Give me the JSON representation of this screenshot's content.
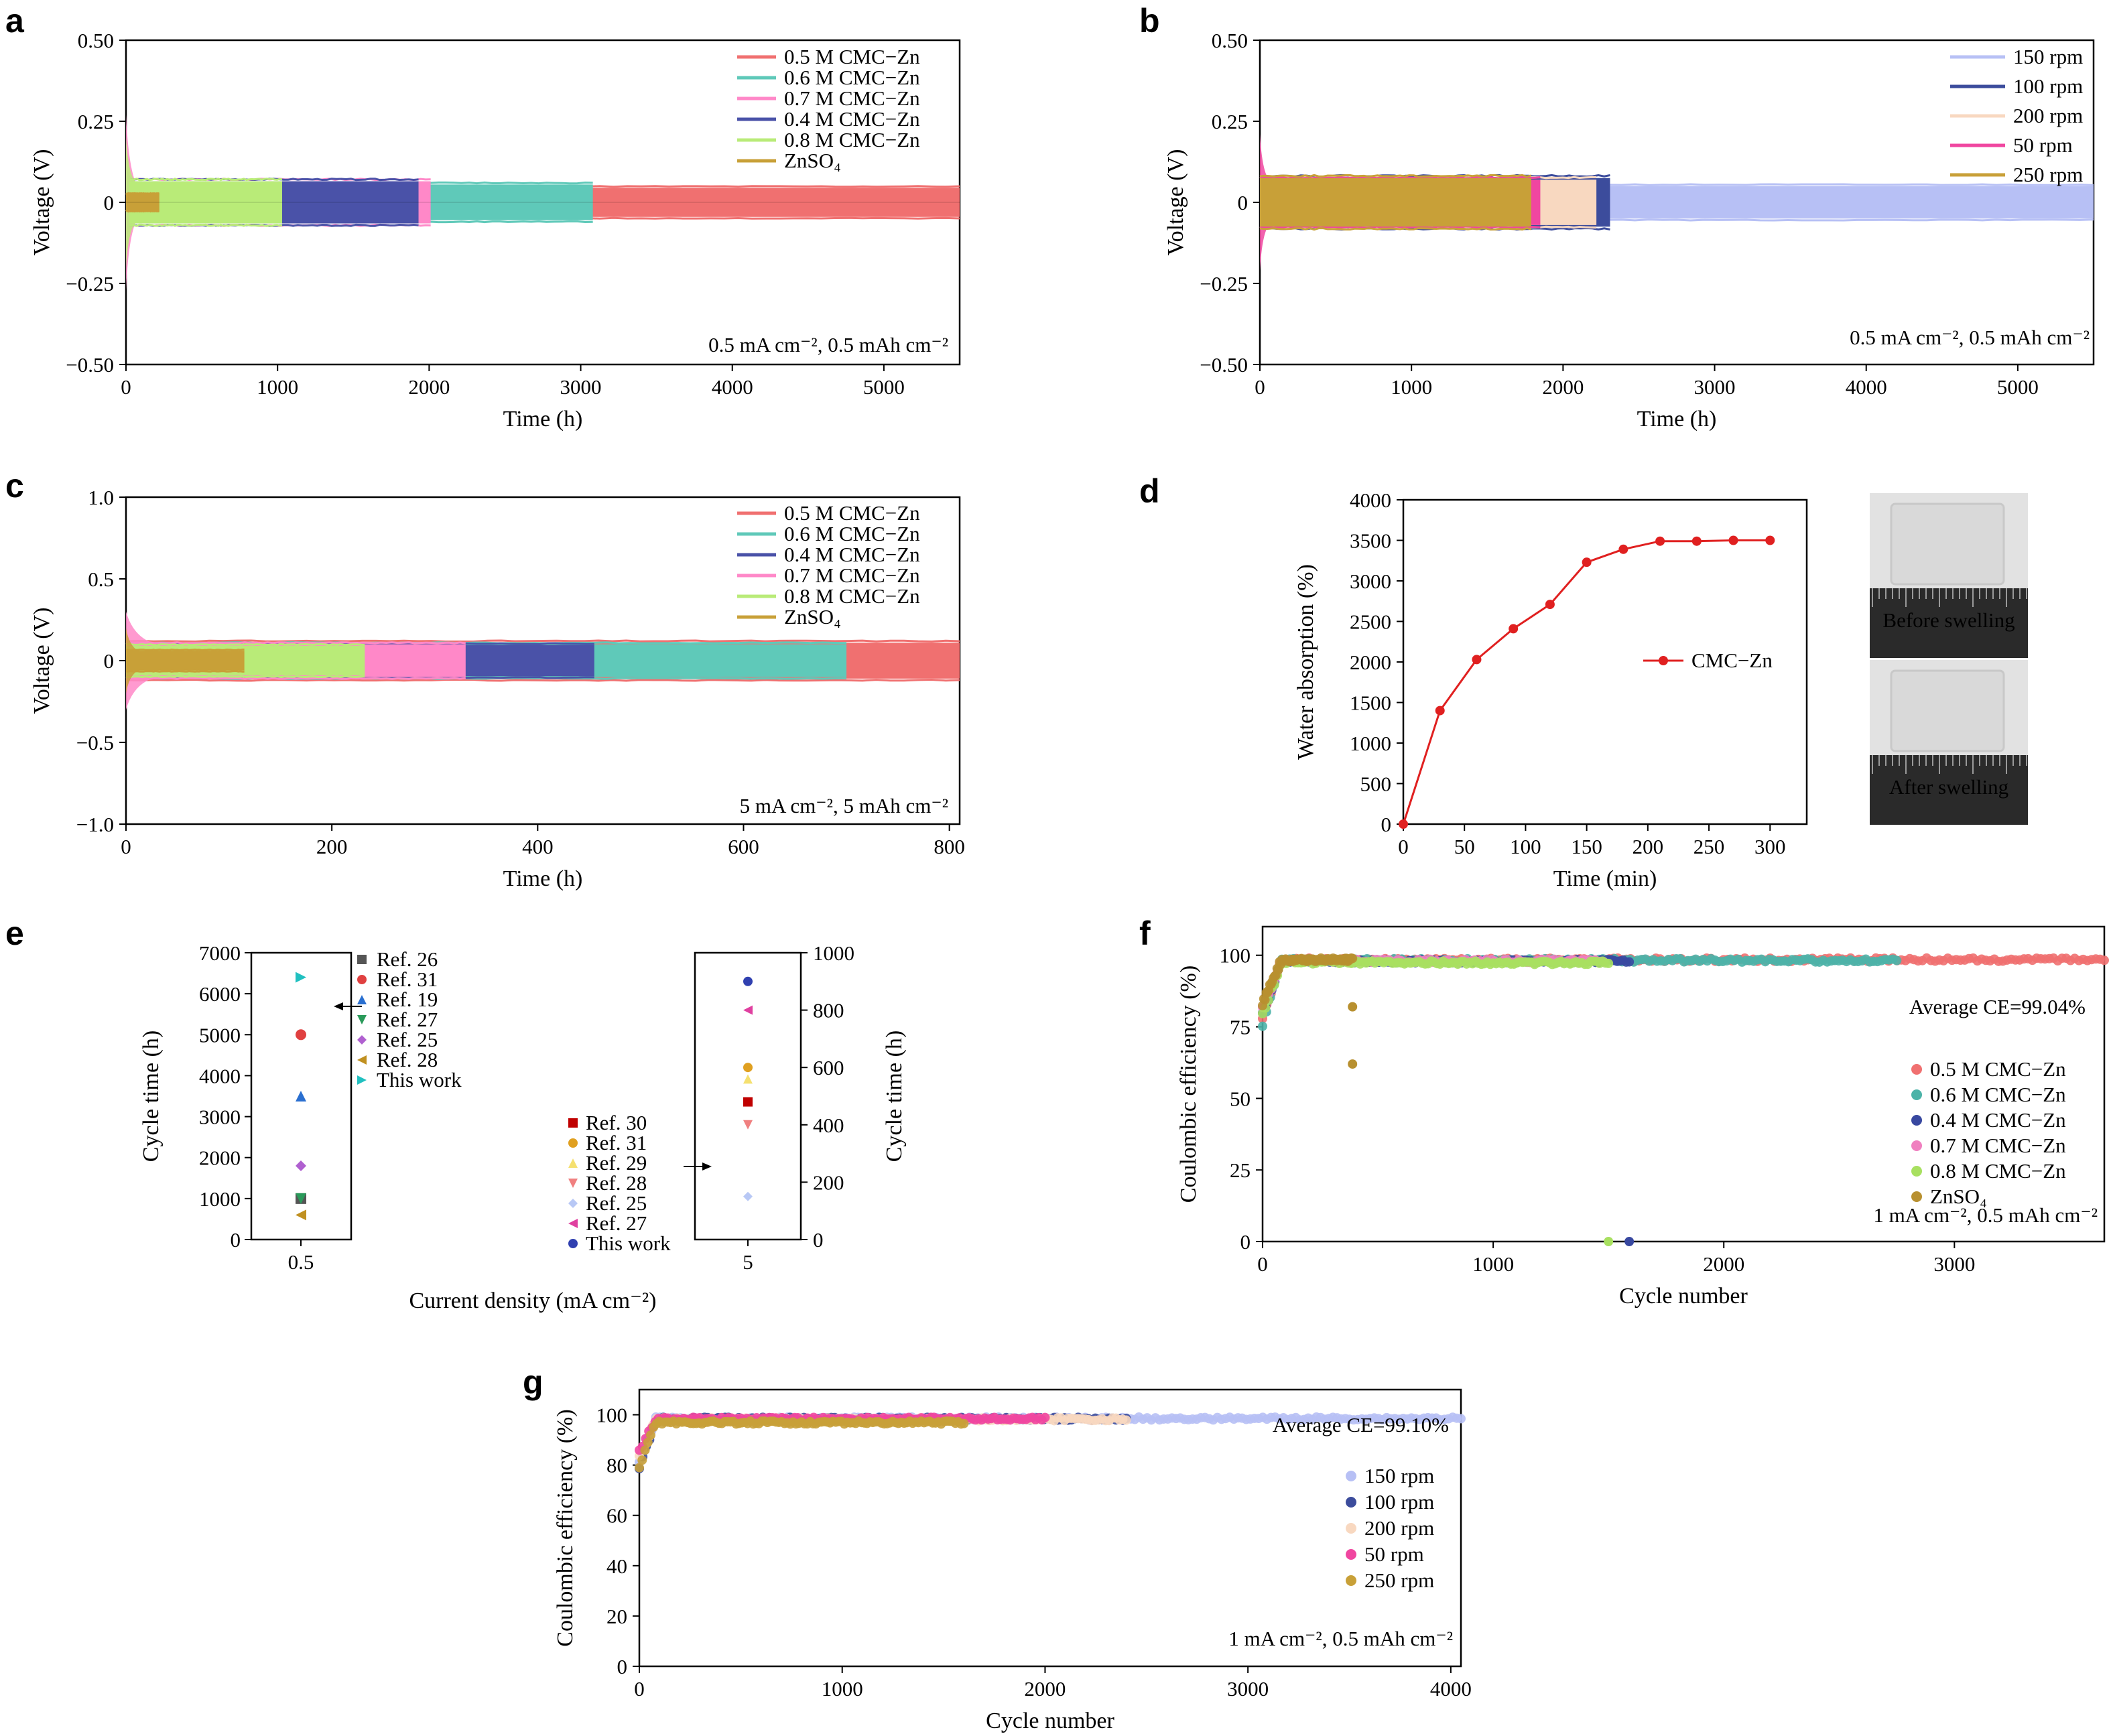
{
  "panel_labels": [
    "a",
    "b",
    "c",
    "d",
    "e",
    "f",
    "g"
  ],
  "photos": {
    "before_label": "Before swelling",
    "after_label": "After swelling",
    "colors": {
      "film": "#d9d9d9",
      "ruler": "#2a2a2a"
    }
  },
  "chart_data": [
    {
      "id": "a",
      "type": "line",
      "xlabel": "Time (h)",
      "ylabel": "Voltage (V)",
      "xlim": [
        0,
        5500
      ],
      "ylim": [
        -0.5,
        0.5
      ],
      "xticks": [
        0,
        1000,
        2000,
        3000,
        4000,
        5000
      ],
      "xtick_labels": [
        "0",
        "1000",
        "2000",
        "3000",
        "4000",
        "5000"
      ],
      "yticks": [
        0.5,
        0.25,
        0,
        -0.25,
        -0.5
      ],
      "ytick_labels": [
        "0.50",
        "0.25",
        "0",
        "−0.25",
        "−0.50"
      ],
      "condition": "0.5 mA cm⁻², 0.5 mAh cm⁻²",
      "series": [
        {
          "name": "0.5 M CMC−Zn",
          "color": "#f07070",
          "x_start": 20,
          "x_end": 5500,
          "amp": 0.045
        },
        {
          "name": "0.6 M CMC−Zn",
          "color": "#5fc9b9",
          "x_start": 20,
          "x_end": 3080,
          "amp": 0.055
        },
        {
          "name": "0.7 M CMC−Zn",
          "color": "#ff88c8",
          "x_start": 20,
          "x_end": 2010,
          "amp": 0.065
        },
        {
          "name": "0.4 M CMC−Zn",
          "color": "#4a52a8",
          "x_start": 20,
          "x_end": 1930,
          "amp": 0.065
        },
        {
          "name": "0.8 M CMC−Zn",
          "color": "#b9eb78",
          "x_start": 20,
          "x_end": 1030,
          "amp": 0.065
        },
        {
          "name": "ZnSO₄",
          "color": "#c8a038",
          "x_start": 0,
          "x_end": 220,
          "amp": 0.025
        }
      ]
    },
    {
      "id": "b",
      "type": "line",
      "xlabel": "Time (h)",
      "ylabel": "Voltage (V)",
      "xlim": [
        0,
        5500
      ],
      "ylim": [
        -0.5,
        0.5
      ],
      "xticks": [
        0,
        1000,
        2000,
        3000,
        4000,
        5000
      ],
      "xtick_labels": [
        "0",
        "1000",
        "2000",
        "3000",
        "4000",
        "5000"
      ],
      "yticks": [
        0.5,
        0.25,
        0,
        -0.25,
        -0.5
      ],
      "ytick_labels": [
        "0.50",
        "0.25",
        "0",
        "−0.25",
        "−0.50"
      ],
      "condition": "0.5 mA cm⁻², 0.5 mAh cm⁻²",
      "series": [
        {
          "name": "150 rpm",
          "color": "#b7c0f5",
          "x_start": 0,
          "x_end": 5500,
          "amp": 0.05
        },
        {
          "name": "100 rpm",
          "color": "#3c4c9c",
          "x_start": 0,
          "x_end": 2310,
          "amp": 0.075
        },
        {
          "name": "200 rpm",
          "color": "#f8d8c0",
          "x_start": 0,
          "x_end": 2220,
          "amp": 0.07
        },
        {
          "name": "50 rpm",
          "color": "#f046a0",
          "x_start": 0,
          "x_end": 1850,
          "amp": 0.07
        },
        {
          "name": "250 rpm",
          "color": "#c8a038",
          "x_start": 0,
          "x_end": 1790,
          "amp": 0.075
        }
      ]
    },
    {
      "id": "c",
      "type": "line",
      "xlabel": "Time (h)",
      "ylabel": "Voltage (V)",
      "xlim": [
        0,
        810
      ],
      "ylim": [
        -1.0,
        1.0
      ],
      "xticks": [
        0,
        200,
        400,
        600,
        800
      ],
      "xtick_labels": [
        "0",
        "200",
        "400",
        "600",
        "800"
      ],
      "yticks": [
        1.0,
        0.5,
        0,
        -0.5,
        -1.0
      ],
      "ytick_labels": [
        "1.0",
        "0.5",
        "0",
        "−0.5",
        "−1.0"
      ],
      "condition": "5 mA cm⁻², 5 mAh cm⁻²",
      "series": [
        {
          "name": "0.5 M CMC−Zn",
          "color": "#f07070",
          "x_start": 0,
          "x_end": 810,
          "amp": 0.11
        },
        {
          "name": "0.6 M CMC−Zn",
          "color": "#5fc9b9",
          "x_start": 0,
          "x_end": 700,
          "amp": 0.1
        },
        {
          "name": "0.4 M CMC−Zn",
          "color": "#4a52a8",
          "x_start": 0,
          "x_end": 455,
          "amp": 0.095
        },
        {
          "name": "0.7 M CMC−Zn",
          "color": "#ff88c8",
          "x_start": 0,
          "x_end": 330,
          "amp": 0.1
        },
        {
          "name": "0.8 M CMC−Zn",
          "color": "#b9eb78",
          "x_start": 0,
          "x_end": 232,
          "amp": 0.09
        },
        {
          "name": "ZnSO₄",
          "color": "#c8a038",
          "x_start": 0,
          "x_end": 115,
          "amp": 0.06
        }
      ]
    },
    {
      "id": "d",
      "type": "line",
      "xlabel": "Time (min)",
      "ylabel": "Water absorption (%)",
      "xlim": [
        0,
        330
      ],
      "ylim": [
        0,
        4000
      ],
      "xticks": [
        0,
        50,
        100,
        150,
        200,
        250,
        300
      ],
      "xtick_labels": [
        "0",
        "50",
        "100",
        "150",
        "200",
        "250",
        "300"
      ],
      "yticks": [
        0,
        500,
        1000,
        1500,
        2000,
        2500,
        3000,
        3500,
        4000
      ],
      "ytick_labels": [
        "0",
        "500",
        "1000",
        "1500",
        "2000",
        "2500",
        "3000",
        "3500",
        "4000"
      ],
      "series": [
        {
          "name": "CMC−Zn",
          "color": "#e02020",
          "x": [
            0,
            30,
            60,
            90,
            120,
            150,
            180,
            210,
            240,
            270,
            300
          ],
          "y": [
            0,
            1400,
            2030,
            2410,
            2710,
            3230,
            3390,
            3490,
            3490,
            3500,
            3500
          ]
        }
      ]
    },
    {
      "id": "e",
      "type": "scatter",
      "xlabel": "Current density (mA cm⁻²)",
      "ylabel_left": "Cycle time (h)",
      "ylabel_right": "Cycle time (h)",
      "left": {
        "category": "0.5",
        "ylim": [
          0,
          7000
        ],
        "yticks": [
          0,
          1000,
          2000,
          3000,
          4000,
          5000,
          6000,
          7000
        ],
        "ytick_labels": [
          "0",
          "1000",
          "2000",
          "3000",
          "4000",
          "5000",
          "6000",
          "7000"
        ],
        "points": [
          {
            "name": "Ref. 26",
            "marker": "square",
            "color": "#555555",
            "value": 1000
          },
          {
            "name": "Ref. 31",
            "marker": "circle",
            "color": "#e04040",
            "value": 5000
          },
          {
            "name": "Ref. 19",
            "marker": "triangle-up",
            "color": "#2a6fd0",
            "value": 3500
          },
          {
            "name": "Ref. 27",
            "marker": "triangle-down",
            "color": "#2a9a5a",
            "value": 1000
          },
          {
            "name": "Ref. 25",
            "marker": "diamond",
            "color": "#b060d0",
            "value": 1800
          },
          {
            "name": "Ref. 28",
            "marker": "triangle-left",
            "color": "#c09020",
            "value": 600
          },
          {
            "name": "This work",
            "marker": "triangle-right",
            "color": "#20c0c0",
            "value": 6400
          }
        ]
      },
      "right": {
        "category": "5",
        "ylim": [
          0,
          1000
        ],
        "yticks": [
          0,
          200,
          400,
          600,
          800,
          1000
        ],
        "ytick_labels": [
          "0",
          "200",
          "400",
          "600",
          "800",
          "1000"
        ],
        "points": [
          {
            "name": "Ref. 30",
            "marker": "square",
            "color": "#c00000",
            "value": 480
          },
          {
            "name": "Ref. 31",
            "marker": "circle",
            "color": "#e0a020",
            "value": 600
          },
          {
            "name": "Ref. 29",
            "marker": "triangle-up",
            "color": "#f5e070",
            "value": 560
          },
          {
            "name": "Ref. 28",
            "marker": "triangle-down",
            "color": "#f08080",
            "value": 400
          },
          {
            "name": "Ref. 25",
            "marker": "diamond",
            "color": "#b8c8f5",
            "value": 150
          },
          {
            "name": "Ref. 27",
            "marker": "triangle-left",
            "color": "#e040a0",
            "value": 800
          },
          {
            "name": "This work",
            "marker": "circle",
            "color": "#3040b0",
            "value": 900
          }
        ]
      }
    },
    {
      "id": "f",
      "type": "scatter",
      "xlabel": "Cycle number",
      "ylabel": "Coulombic efficiency (%)",
      "xlim": [
        0,
        3650
      ],
      "ylim": [
        0,
        110
      ],
      "xticks": [
        0,
        1000,
        2000,
        3000
      ],
      "xtick_labels": [
        "0",
        "1000",
        "2000",
        "3000"
      ],
      "yticks": [
        0,
        25,
        50,
        75,
        100
      ],
      "ytick_labels": [
        "0",
        "25",
        "50",
        "75",
        "100"
      ],
      "annotation": "Average CE=99.04%",
      "condition": "1 mA cm⁻², 0.5 mAh cm⁻²",
      "series": [
        {
          "name": "0.5 M CMC−Zn",
          "color": "#f07070",
          "x_end": 3650,
          "level": 99.04
        },
        {
          "name": "0.6 M CMC−Zn",
          "color": "#4cb3a8",
          "x_end": 2750,
          "level": 98.8
        },
        {
          "name": "0.4 M CMC−Zn",
          "color": "#3848a0",
          "x_end": 1590,
          "level": 98.5
        },
        {
          "name": "0.7 M CMC−Zn",
          "color": "#f080c0",
          "x_end": 1480,
          "level": 98.6
        },
        {
          "name": "0.8 M CMC−Zn",
          "color": "#a8e060",
          "x_end": 1500,
          "level": 98.0
        },
        {
          "name": "ZnSO₄",
          "color": "#b89030",
          "x_end": 390,
          "level": 99.0
        }
      ],
      "outliers": [
        {
          "series": "ZnSO₄",
          "x": 390,
          "y": 82
        },
        {
          "series": "ZnSO₄",
          "x": 390,
          "y": 62
        },
        {
          "series": "0.8 M CMC−Zn",
          "x": 1500,
          "y": 0
        },
        {
          "series": "0.4 M CMC−Zn",
          "x": 1590,
          "y": 0
        }
      ]
    },
    {
      "id": "g",
      "type": "scatter",
      "xlabel": "Cycle number",
      "ylabel": "Coulombic efficiency (%)",
      "xlim": [
        0,
        4050
      ],
      "ylim": [
        0,
        110
      ],
      "xticks": [
        0,
        1000,
        2000,
        3000,
        4000
      ],
      "xtick_labels": [
        "0",
        "1000",
        "2000",
        "3000",
        "4000"
      ],
      "yticks": [
        0,
        20,
        40,
        60,
        80,
        100
      ],
      "ytick_labels": [
        "0",
        "20",
        "40",
        "60",
        "80",
        "100"
      ],
      "annotation": "Average CE=99.10%",
      "condition": "1 mA cm⁻², 0.5 mAh cm⁻²",
      "series": [
        {
          "name": "150 rpm",
          "color": "#b7c0f5",
          "x_end": 4050,
          "level": 99.1
        },
        {
          "name": "100 rpm",
          "color": "#3c4c9c",
          "x_end": 2400,
          "level": 99.0
        },
        {
          "name": "200 rpm",
          "color": "#f8d8c0",
          "x_end": 2400,
          "level": 98.8
        },
        {
          "name": "50 rpm",
          "color": "#f046a0",
          "x_end": 2000,
          "level": 99.0
        },
        {
          "name": "250 rpm",
          "color": "#c8a038",
          "x_end": 1600,
          "level": 97.5
        }
      ]
    }
  ]
}
